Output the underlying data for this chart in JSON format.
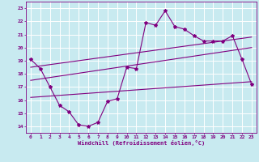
{
  "xlabel": "Windchill (Refroidissement éolien,°C)",
  "bg_color": "#c8eaf0",
  "grid_color": "#b8d8e0",
  "line_color": "#800080",
  "xlim": [
    -0.5,
    23.5
  ],
  "ylim": [
    13.5,
    23.5
  ],
  "xticks": [
    0,
    1,
    2,
    3,
    4,
    5,
    6,
    7,
    8,
    9,
    10,
    11,
    12,
    13,
    14,
    15,
    16,
    17,
    18,
    19,
    20,
    21,
    22,
    23
  ],
  "yticks": [
    14,
    15,
    16,
    17,
    18,
    19,
    20,
    21,
    22,
    23
  ],
  "series1_x": [
    0,
    1,
    2,
    3,
    4,
    5,
    6,
    7,
    8,
    9,
    10,
    11,
    12,
    13,
    14,
    15,
    16,
    17,
    18,
    19,
    20,
    21,
    22,
    23
  ],
  "series1_y": [
    19.1,
    18.4,
    17.0,
    15.6,
    15.1,
    14.1,
    14.0,
    14.3,
    15.9,
    16.1,
    18.5,
    18.4,
    21.9,
    21.7,
    22.8,
    21.6,
    21.4,
    20.9,
    20.5,
    20.5,
    20.5,
    20.9,
    19.1,
    17.2
  ],
  "trend1_x": [
    0,
    23
  ],
  "trend1_y": [
    18.5,
    20.8
  ],
  "trend2_x": [
    0,
    23
  ],
  "trend2_y": [
    17.5,
    20.0
  ],
  "trend3_x": [
    0,
    23
  ],
  "trend3_y": [
    16.2,
    17.4
  ]
}
